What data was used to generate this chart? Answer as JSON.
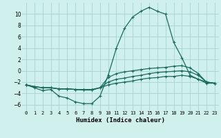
{
  "x": [
    0,
    1,
    2,
    3,
    4,
    5,
    6,
    7,
    8,
    9,
    10,
    11,
    12,
    13,
    14,
    15,
    16,
    17,
    18,
    19,
    20,
    21,
    22,
    23
  ],
  "line1": [
    -2.5,
    -3.0,
    -3.5,
    -3.3,
    -4.5,
    -4.8,
    -5.5,
    -5.8,
    -5.8,
    -4.5,
    -0.8,
    4.0,
    7.5,
    9.5,
    10.5,
    11.2,
    10.5,
    10.0,
    5.0,
    2.3,
    -0.8,
    -1.5,
    -2.2,
    -2.2
  ],
  "line2": [
    -2.5,
    -2.8,
    -3.0,
    -3.0,
    -3.2,
    -3.2,
    -3.3,
    -3.3,
    -3.3,
    -3.0,
    -1.2,
    -0.5,
    -0.2,
    0.0,
    0.2,
    0.4,
    0.5,
    0.6,
    0.8,
    0.9,
    0.5,
    -0.5,
    -2.0,
    -2.2
  ],
  "line3": [
    -2.5,
    -2.8,
    -3.0,
    -3.0,
    -3.2,
    -3.2,
    -3.3,
    -3.4,
    -3.4,
    -3.0,
    -2.0,
    -1.5,
    -1.3,
    -1.0,
    -0.8,
    -0.5,
    -0.3,
    -0.2,
    -0.1,
    0.0,
    -0.2,
    -0.8,
    -2.0,
    -2.2
  ],
  "line4": [
    -2.5,
    -2.8,
    -3.0,
    -3.0,
    -3.2,
    -3.2,
    -3.3,
    -3.4,
    -3.4,
    -3.0,
    -2.5,
    -2.2,
    -2.0,
    -1.8,
    -1.5,
    -1.3,
    -1.2,
    -1.0,
    -1.0,
    -0.8,
    -1.0,
    -1.5,
    -2.0,
    -2.2
  ],
  "bg_color": "#cff0ec",
  "grid_color": "#aad8d3",
  "line_color": "#1a6b5a",
  "xlim": [
    -0.5,
    23.5
  ],
  "ylim": [
    -7,
    12
  ],
  "yticks": [
    -6,
    -4,
    -2,
    0,
    2,
    4,
    6,
    8,
    10
  ],
  "xtick_labels": [
    "0",
    "1",
    "2",
    "3",
    "4",
    "5",
    "6",
    "7",
    "8",
    "9",
    "10",
    "11",
    "12",
    "13",
    "14",
    "15",
    "16",
    "17",
    "18",
    "19",
    "20",
    "21",
    "22",
    "23"
  ],
  "xlabel": "Humidex (Indice chaleur)",
  "marker": "+"
}
